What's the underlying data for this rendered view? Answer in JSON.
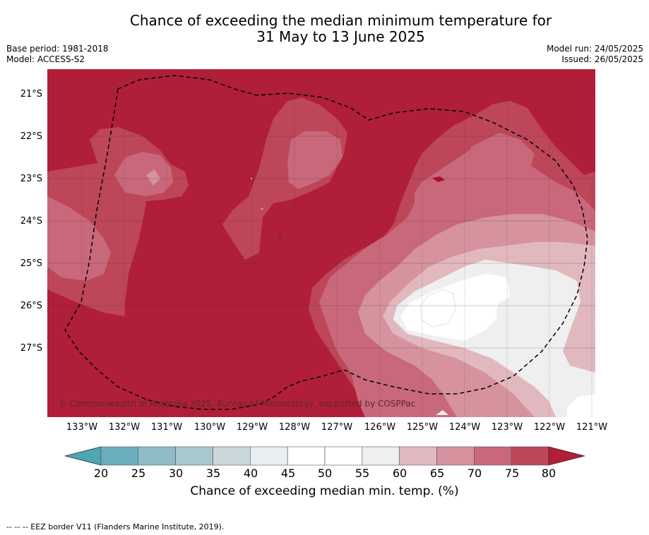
{
  "title_line1": "Chance of exceeding the median minimum temperature for",
  "title_line2": "31 May to 13 June 2025",
  "base_period": "Base period: 1981-2018",
  "model": "Model: ACCESS-S2",
  "model_run": "Model run: 24/05/2025",
  "issued": "Issued: 26/05/2025",
  "lat_labels": [
    "21°S",
    "22°S",
    "23°S",
    "24°S",
    "25°S",
    "26°S",
    "27°S"
  ],
  "lon_labels": [
    "133°W",
    "132°W",
    "131°W",
    "130°W",
    "129°W",
    "128°W",
    "127°W",
    "126°W",
    "125°W",
    "124°W",
    "123°W",
    "122°W",
    "121°W"
  ],
  "copyright": "© Commonwealth of Australia 2025, Bureau of Meteorology, supported by COSPPac",
  "colorbar": {
    "ticks": [
      "20",
      "25",
      "30",
      "35",
      "40",
      "45",
      "50",
      "55",
      "60",
      "65",
      "70",
      "75",
      "80"
    ],
    "colors": [
      "#6aaebd",
      "#8fbcc7",
      "#a9c8cf",
      "#cbd8db",
      "#e8eff1",
      "#ffffff",
      "#ffffff",
      "#efefef",
      "#e2b8bf",
      "#d6929d",
      "#c9687a",
      "#bd4659"
    ],
    "under_color": "#4ea5b3",
    "over_color": "#b11e39",
    "label": "Chance of exceeding median min. temp. (%)"
  },
  "footnote": "--  --  -- EEZ border V11 (Flanders Marine Institute, 2019)."
}
